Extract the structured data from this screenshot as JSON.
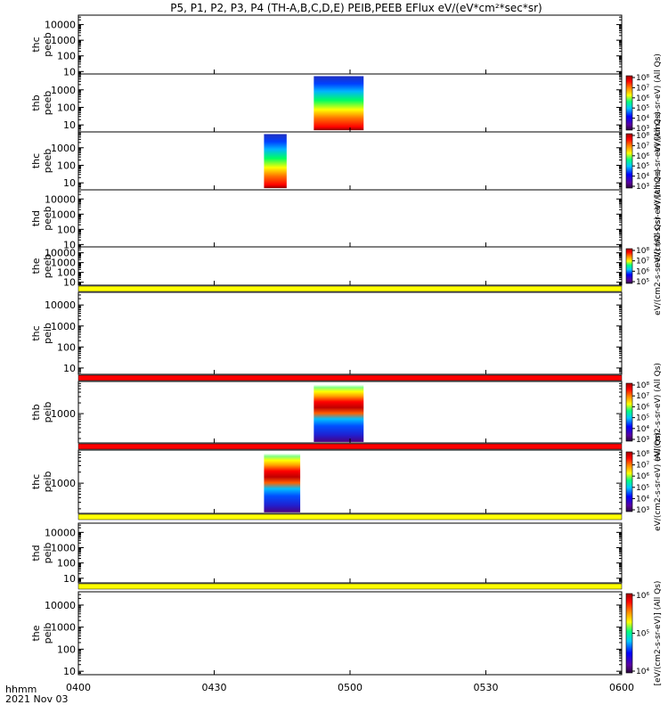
{
  "title": "P5, P1, P2, P3, P4 (TH-A,B,C,D,E) PEIB,PEEB EFlux eV/(eV*cm²*sec*sr)",
  "footer": {
    "time_label": "hhmm",
    "date_label": "2021 Nov 03"
  },
  "chart_data": {
    "type": "heatmap",
    "title": "P5, P1, P2, P3, P4 (TH-A,B,C,D,E) PEIB,PEEB EFlux eV/(eV*cm²*sec*sr)",
    "x_tick_labels": [
      "0400",
      "0430",
      "0500",
      "0530",
      "0600"
    ],
    "x_range_minutes": [
      0,
      120
    ],
    "colorscale": "rainbow",
    "panels": [
      {
        "label": [
          "thc",
          "peeb"
        ],
        "yscale": "log",
        "yticks": [
          10,
          100,
          1000,
          10000
        ],
        "yrange": [
          7,
          40000
        ],
        "blocks": [],
        "colorbar": null
      },
      {
        "label": [
          "thb",
          "peeb"
        ],
        "yscale": "log",
        "yticks": [
          10,
          100,
          1000
        ],
        "yrange": [
          4,
          8000
        ],
        "blocks": [
          {
            "start_min": 52,
            "end_min": 63,
            "ymin": 5,
            "ymax": 6000
          }
        ],
        "colorbar": {
          "labels": [
            "10³",
            "10⁴",
            "10⁵",
            "10⁶",
            "10⁷",
            "10⁸"
          ],
          "title": "eV/(cm2-s-sr-eV) (All Qs)"
        }
      },
      {
        "label": [
          "thc",
          "peeb"
        ],
        "yscale": "log",
        "yticks": [
          10,
          100,
          1000
        ],
        "yrange": [
          4,
          8000
        ],
        "blocks": [
          {
            "start_min": 41,
            "end_min": 46,
            "ymin": 5,
            "ymax": 6000
          }
        ],
        "colorbar": {
          "labels": [
            "10³",
            "10⁴",
            "10⁵",
            "10⁶",
            "10⁷",
            "10⁸"
          ],
          "title": "eV/(cm2-s-sr-eV) (All Qs)"
        }
      },
      {
        "label": [
          "thd",
          "peeb"
        ],
        "yscale": "log",
        "yticks": [
          10,
          100,
          1000,
          10000
        ],
        "yrange": [
          7,
          40000
        ],
        "blocks": [],
        "colorbar": {
          "labels": [],
          "title": "eV/(cm2-s-sr-eV) (All Qs)"
        }
      },
      {
        "label": [
          "the",
          "peeb"
        ],
        "yscale": "log",
        "yticks": [
          10,
          100,
          1000,
          10000
        ],
        "yrange": [
          5,
          40000
        ],
        "blocks": [],
        "colorbar": {
          "labels": [
            "10⁵",
            "10⁶",
            "10⁷",
            "10⁸"
          ],
          "title": "eV/(cm2-s-sr-eV) (All Qs)"
        }
      },
      {
        "label": [
          "thc",
          "peib"
        ],
        "yscale": "log",
        "yticks": [
          10,
          100,
          1000,
          10000
        ],
        "yrange": [
          5,
          40000
        ],
        "blocks": [],
        "colorbar": null
      },
      {
        "label": [
          "thb",
          "peib"
        ],
        "yscale": "log",
        "yticks": [
          1000
        ],
        "yrange": [
          150,
          8000
        ],
        "blocks": [
          {
            "start_min": 52,
            "end_min": 63,
            "ymin": 160,
            "ymax": 6500
          }
        ],
        "colorbar": {
          "labels": [
            "10³",
            "10⁴",
            "10⁵",
            "10⁶",
            "10⁷",
            "10⁸"
          ],
          "title": "eV/(cm2-s-sr-eV) (All Qs)"
        }
      },
      {
        "label": [
          "thc",
          "peib"
        ],
        "yscale": "log",
        "yticks": [
          1000
        ],
        "yrange": [
          150,
          8000
        ],
        "blocks": [
          {
            "start_min": 41,
            "end_min": 49,
            "ymin": 160,
            "ymax": 6500
          }
        ],
        "colorbar": {
          "labels": [
            "10³",
            "10⁴",
            "10⁵",
            "10⁶",
            "10⁷",
            "10⁸"
          ],
          "title": "eV/(cm2-s-sr-eV) (All Qs)"
        }
      },
      {
        "label": [
          "thd",
          "peib"
        ],
        "yscale": "log",
        "yticks": [
          10,
          100,
          1000,
          10000
        ],
        "yrange": [
          5,
          40000
        ],
        "blocks": [],
        "colorbar": null
      },
      {
        "label": [
          "the",
          "peib"
        ],
        "yscale": "log",
        "yticks": [
          10,
          100,
          1000,
          10000
        ],
        "yrange": [
          7,
          40000
        ],
        "blocks": [],
        "colorbar": {
          "labels": [
            "10⁴",
            "10⁵",
            "10⁶"
          ],
          "title": "[eV/(cm2-s-sr-eV)] (All Qs)"
        }
      }
    ],
    "flag_bars": [
      {
        "after_panel": 4,
        "color": "#ffff00"
      },
      {
        "after_panel": 5,
        "color": "#ff0000"
      },
      {
        "after_panel": 6,
        "color": "#ff0000"
      },
      {
        "after_panel": 7,
        "color": "#ffff00"
      },
      {
        "after_panel": 8,
        "color": "#ffff00"
      }
    ]
  }
}
